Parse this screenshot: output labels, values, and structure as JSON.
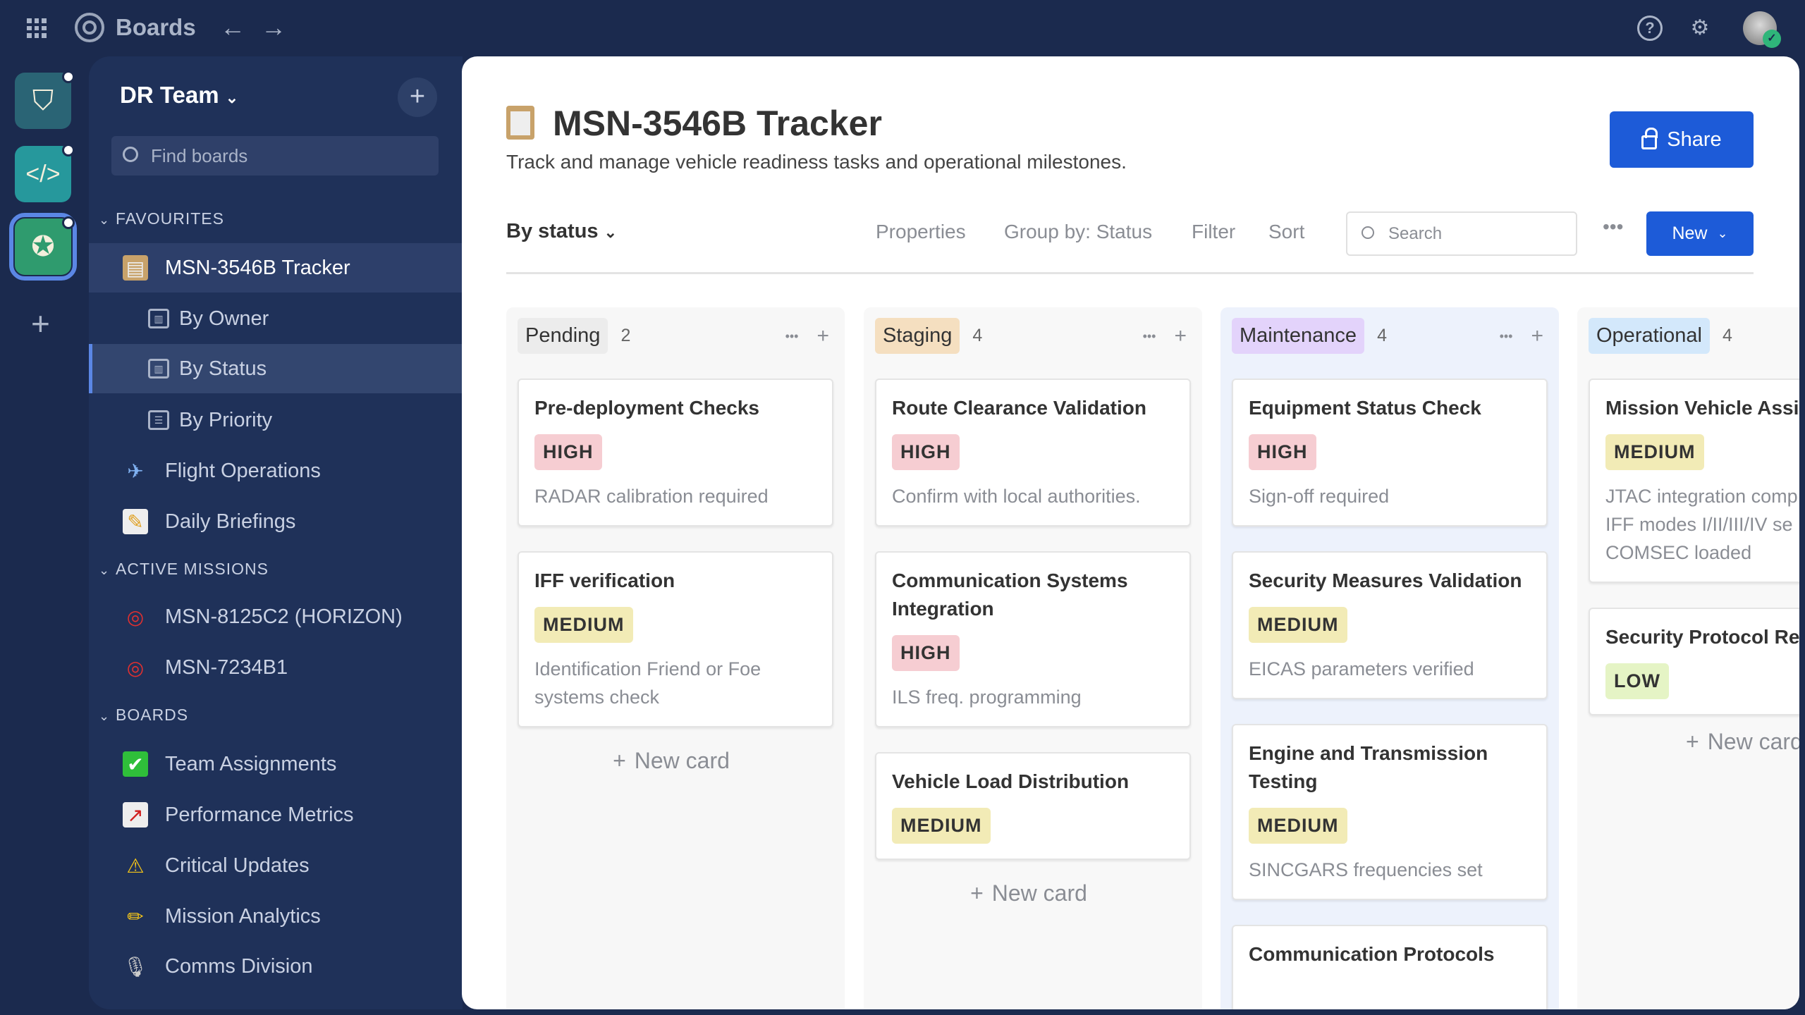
{
  "topbar": {
    "title": "Boards",
    "icons": [
      "app-grid-icon",
      "target-logo-icon",
      "back-arrow-icon",
      "forward-arrow-icon",
      "help-icon",
      "gear-icon",
      "avatar"
    ]
  },
  "rail": {
    "apps": [
      {
        "icon": "shield-check-icon",
        "color": "#2a6475"
      },
      {
        "icon": "code-hexagon-icon",
        "color": "#26989c"
      },
      {
        "icon": "star-circle-icon",
        "color": "#2f9b6e"
      }
    ]
  },
  "sidebar": {
    "team": "DR Team",
    "search_placeholder": "Find boards",
    "sections": [
      {
        "label": "FAVOURITES"
      },
      {
        "label": "ACTIVE MISSIONS"
      },
      {
        "label": "BOARDS"
      }
    ],
    "favourites": [
      {
        "label": "MSN-3546B Tracker",
        "icon": "clipboard-icon"
      },
      {
        "label": "By Owner",
        "icon": "board-view-icon"
      },
      {
        "label": "By Status",
        "icon": "board-view-icon"
      },
      {
        "label": "By Priority",
        "icon": "table-view-icon"
      },
      {
        "label": "Flight Operations",
        "icon": "airplane-icon"
      },
      {
        "label": "Daily Briefings",
        "icon": "memo-icon"
      }
    ],
    "missions": [
      {
        "label": "MSN-8125C2 (HORIZON)",
        "icon": "target-dart-icon"
      },
      {
        "label": "MSN-7234B1",
        "icon": "target-dart-icon"
      }
    ],
    "boards": [
      {
        "label": "Team Assignments",
        "icon": "check-box-icon"
      },
      {
        "label": "Performance Metrics",
        "icon": "chart-up-icon"
      },
      {
        "label": "Critical Updates",
        "icon": "warning-icon"
      },
      {
        "label": "Mission Analytics",
        "icon": "pencil-icon"
      },
      {
        "label": "Comms Division",
        "icon": "microphone-icon"
      }
    ]
  },
  "main": {
    "title": "MSN-3546B Tracker",
    "subtitle": "Track and manage vehicle readiness tasks and operational milestones.",
    "share": "Share",
    "view": "By status",
    "toolbar": {
      "properties": "Properties",
      "group_by": "Group by: Status",
      "filter": "Filter",
      "sort": "Sort",
      "search_placeholder": "Search",
      "more": "•••",
      "new": "New"
    },
    "new_card": "New card",
    "columns": [
      {
        "name": "Pending",
        "count": "2",
        "pill": "#ececec",
        "bg": "#f7f7f7",
        "cards": [
          {
            "title": "Pre-deployment Checks",
            "priority": "HIGH",
            "desc": [
              "RADAR calibration required"
            ]
          },
          {
            "title": "IFF verification",
            "priority": "MEDIUM",
            "desc": [
              "Identification Friend or Foe",
              "systems check"
            ]
          }
        ]
      },
      {
        "name": "Staging",
        "count": "4",
        "pill": "#f5dfc0",
        "bg": "#f8f8f8",
        "cards": [
          {
            "title": "Route Clearance Validation",
            "priority": "HIGH",
            "desc": [
              "Confirm with local authorities."
            ]
          },
          {
            "title": "Communication Systems Integration",
            "priority": "HIGH",
            "desc": [
              "ILS freq. programming"
            ]
          },
          {
            "title": "Vehicle Load Distribution",
            "priority": "MEDIUM",
            "desc": []
          }
        ]
      },
      {
        "name": "Maintenance",
        "count": "4",
        "pill": "#e3d3fb",
        "bg": "#edf2fc",
        "cards": [
          {
            "title": "Equipment Status Check",
            "priority": "HIGH",
            "desc": [
              "Sign-off required"
            ]
          },
          {
            "title": "Security Measures Validation",
            "priority": "MEDIUM",
            "desc": [
              "EICAS parameters verified"
            ]
          },
          {
            "title": "Engine and Transmission Testing",
            "priority": "MEDIUM",
            "desc": [
              "SINCGARS frequencies set"
            ]
          },
          {
            "title": "Communication Protocols",
            "priority": "",
            "desc": []
          }
        ]
      },
      {
        "name": "Operational",
        "count": "4",
        "pill": "#d3e8fb",
        "bg": "#f8f8f8",
        "cards": [
          {
            "title": "Mission Vehicle Assig",
            "priority": "MEDIUM",
            "desc": [
              "JTAC integration comp",
              "IFF modes I/II/III/IV se",
              "COMSEC loaded"
            ]
          },
          {
            "title": "Security Protocol Rev",
            "priority": "LOW",
            "desc": []
          }
        ]
      }
    ],
    "priority_colors": {
      "HIGH": "#f6cdd2",
      "MEDIUM": "#f2ebb6",
      "LOW": "#e5f4c5"
    }
  }
}
